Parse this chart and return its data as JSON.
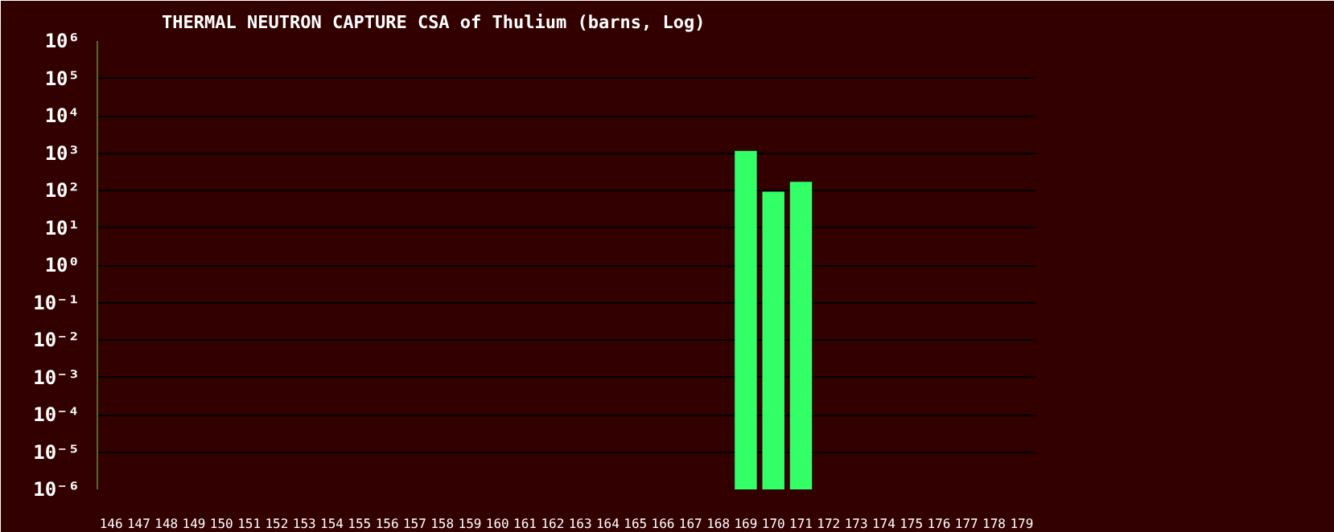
{
  "chart_data": {
    "type": "bar",
    "title": "THERMAL NEUTRON CAPTURE CSA of Thulium (barns, Log)",
    "categories": [
      "146",
      "147",
      "148",
      "149",
      "150",
      "151",
      "152",
      "153",
      "154",
      "155",
      "156",
      "157",
      "158",
      "159",
      "160",
      "161",
      "162",
      "163",
      "164",
      "165",
      "166",
      "167",
      "168",
      "169",
      "170",
      "171",
      "172",
      "173",
      "174",
      "175",
      "176",
      "177",
      "178",
      "179"
    ],
    "values": [
      null,
      null,
      null,
      null,
      null,
      null,
      null,
      null,
      null,
      null,
      null,
      null,
      null,
      null,
      null,
      null,
      null,
      null,
      null,
      null,
      null,
      null,
      null,
      1150,
      93,
      170,
      null,
      null,
      null,
      null,
      null,
      null,
      null,
      null
    ],
    "color": "#33ff66",
    "log": true,
    "ylim": [
      1e-06,
      1000000.0
    ],
    "yticks": [
      {
        "value": 1e-06,
        "label": "10⁻⁶"
      },
      {
        "value": 1e-05,
        "label": "10⁻⁵"
      },
      {
        "value": 0.0001,
        "label": "10⁻⁴"
      },
      {
        "value": 0.001,
        "label": "10⁻³"
      },
      {
        "value": 0.01,
        "label": "10⁻²"
      },
      {
        "value": 0.1,
        "label": "10⁻¹"
      },
      {
        "value": 1,
        "label": "10⁰"
      },
      {
        "value": 10,
        "label": "10¹"
      },
      {
        "value": 100,
        "label": "10²"
      },
      {
        "value": 1000,
        "label": "10³"
      },
      {
        "value": 10000,
        "label": "10⁴"
      },
      {
        "value": 100000,
        "label": "10⁵"
      },
      {
        "value": 1000000,
        "label": "10⁶"
      }
    ],
    "grid": "y"
  }
}
